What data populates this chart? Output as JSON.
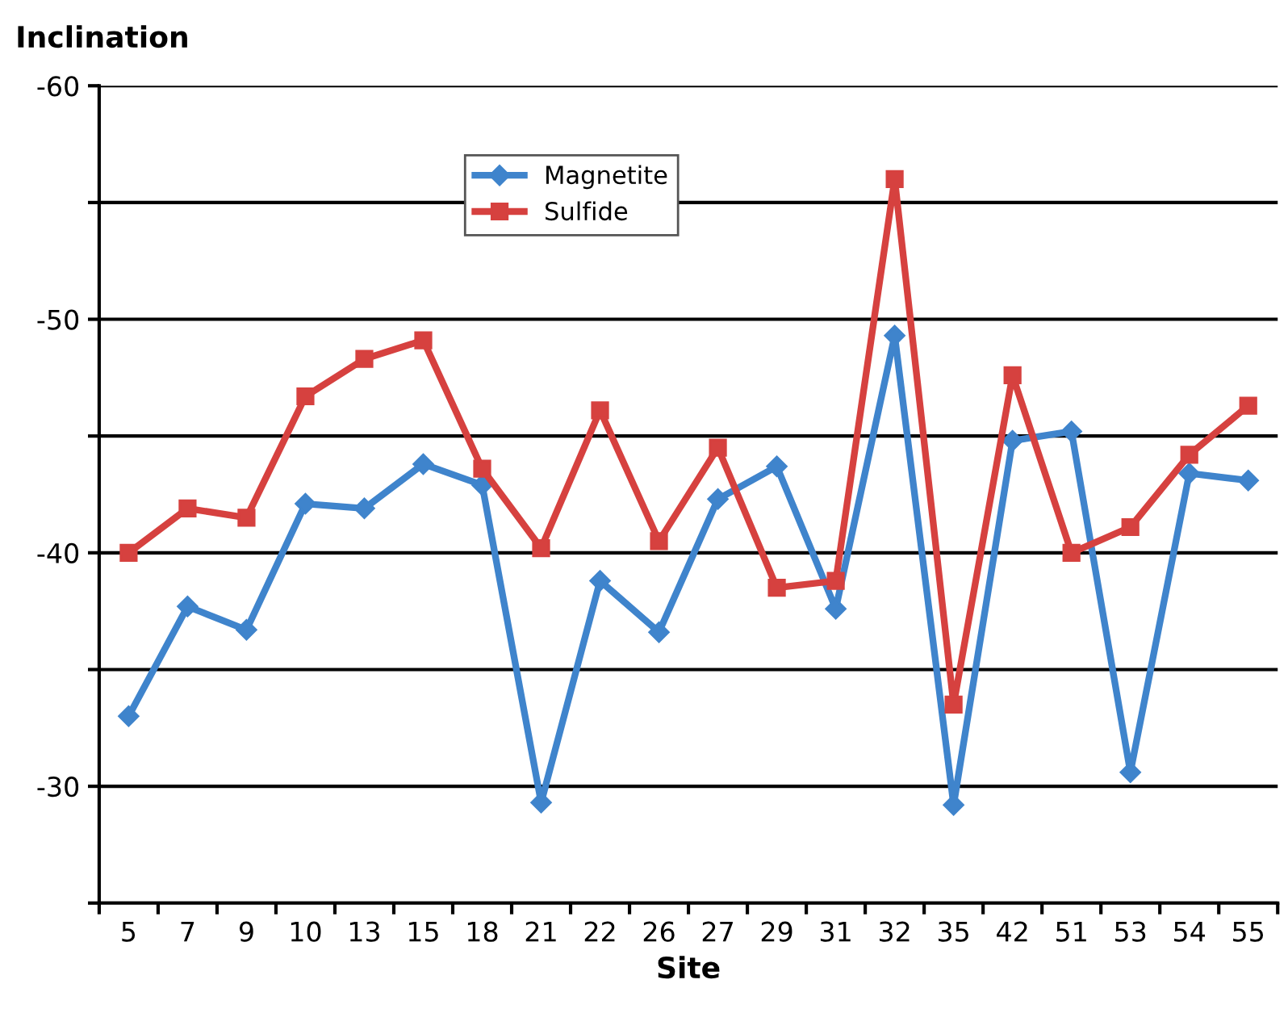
{
  "chart_data": {
    "type": "line",
    "ylabel": "Inclination",
    "xlabel": "Site",
    "categories": [
      "5",
      "7",
      "9",
      "10",
      "13",
      "15",
      "18",
      "21",
      "22",
      "26",
      "27",
      "29",
      "31",
      "32",
      "35",
      "42",
      "51",
      "53",
      "54",
      "55"
    ],
    "series": [
      {
        "name": "Magnetite",
        "color": "#3f84cc",
        "marker": "diamond",
        "values": [
          -33.0,
          -37.7,
          -36.7,
          -42.1,
          -41.9,
          -43.8,
          -42.9,
          -29.3,
          -38.8,
          -36.6,
          -42.3,
          -43.7,
          -37.6,
          -49.3,
          -29.2,
          -44.8,
          -45.2,
          -30.6,
          -43.4,
          -43.1
        ]
      },
      {
        "name": "Sulfide",
        "color": "#d6413f",
        "marker": "square",
        "values": [
          -40.0,
          -41.9,
          -41.5,
          -46.7,
          -48.3,
          -49.1,
          -43.6,
          -40.2,
          -46.1,
          -40.5,
          -44.5,
          -38.5,
          -38.8,
          -56.0,
          -33.5,
          -47.6,
          -40.0,
          -41.1,
          -44.2,
          -46.3
        ]
      }
    ],
    "ylim": [
      -25,
      -60
    ],
    "yticks": [
      {
        "value": -60,
        "label": "-60"
      },
      {
        "value": -55,
        "label": null
      },
      {
        "value": -50,
        "label": "-50"
      },
      {
        "value": -45,
        "label": null
      },
      {
        "value": -40,
        "label": "-40"
      },
      {
        "value": -35,
        "label": null
      },
      {
        "value": -30,
        "label": "-30"
      },
      {
        "value": -25,
        "label": null
      }
    ],
    "grid": "y",
    "legend": "top left",
    "line_style": "solid"
  }
}
